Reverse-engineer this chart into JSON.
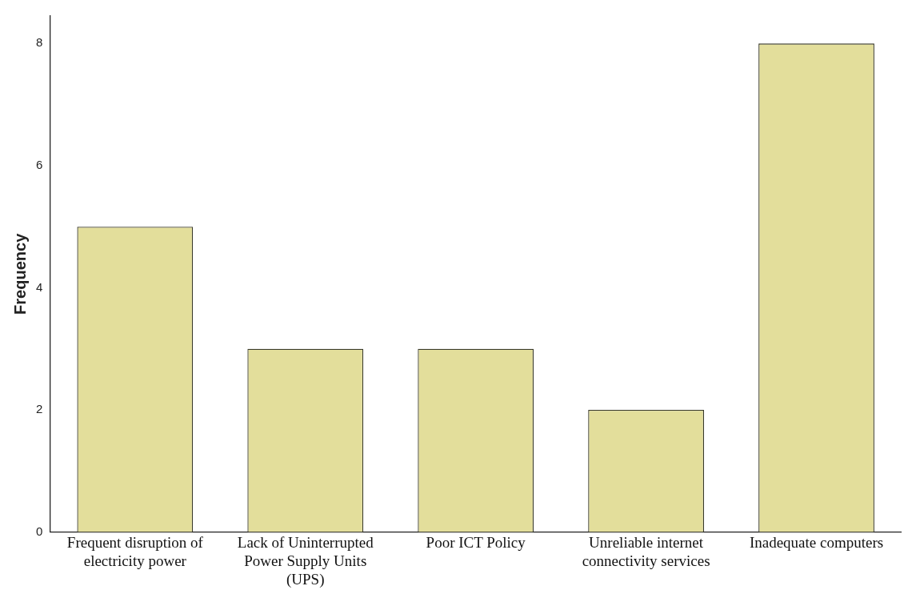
{
  "chart_data": {
    "type": "bar",
    "ylabel": "Frequency",
    "categories": [
      "Frequent disruption of electricity power",
      "Lack of Uninterrupted Power Supply Units (UPS)",
      "Poor ICT Policy",
      "Unreliable internet connectivity services",
      "Inadequate computers"
    ],
    "values": [
      5,
      3,
      3,
      2,
      8
    ],
    "color": "#e3de9b",
    "ylim": [
      0,
      8.45
    ],
    "yticks": [
      0,
      2,
      4,
      6,
      8
    ],
    "grid": false,
    "legend": false
  }
}
